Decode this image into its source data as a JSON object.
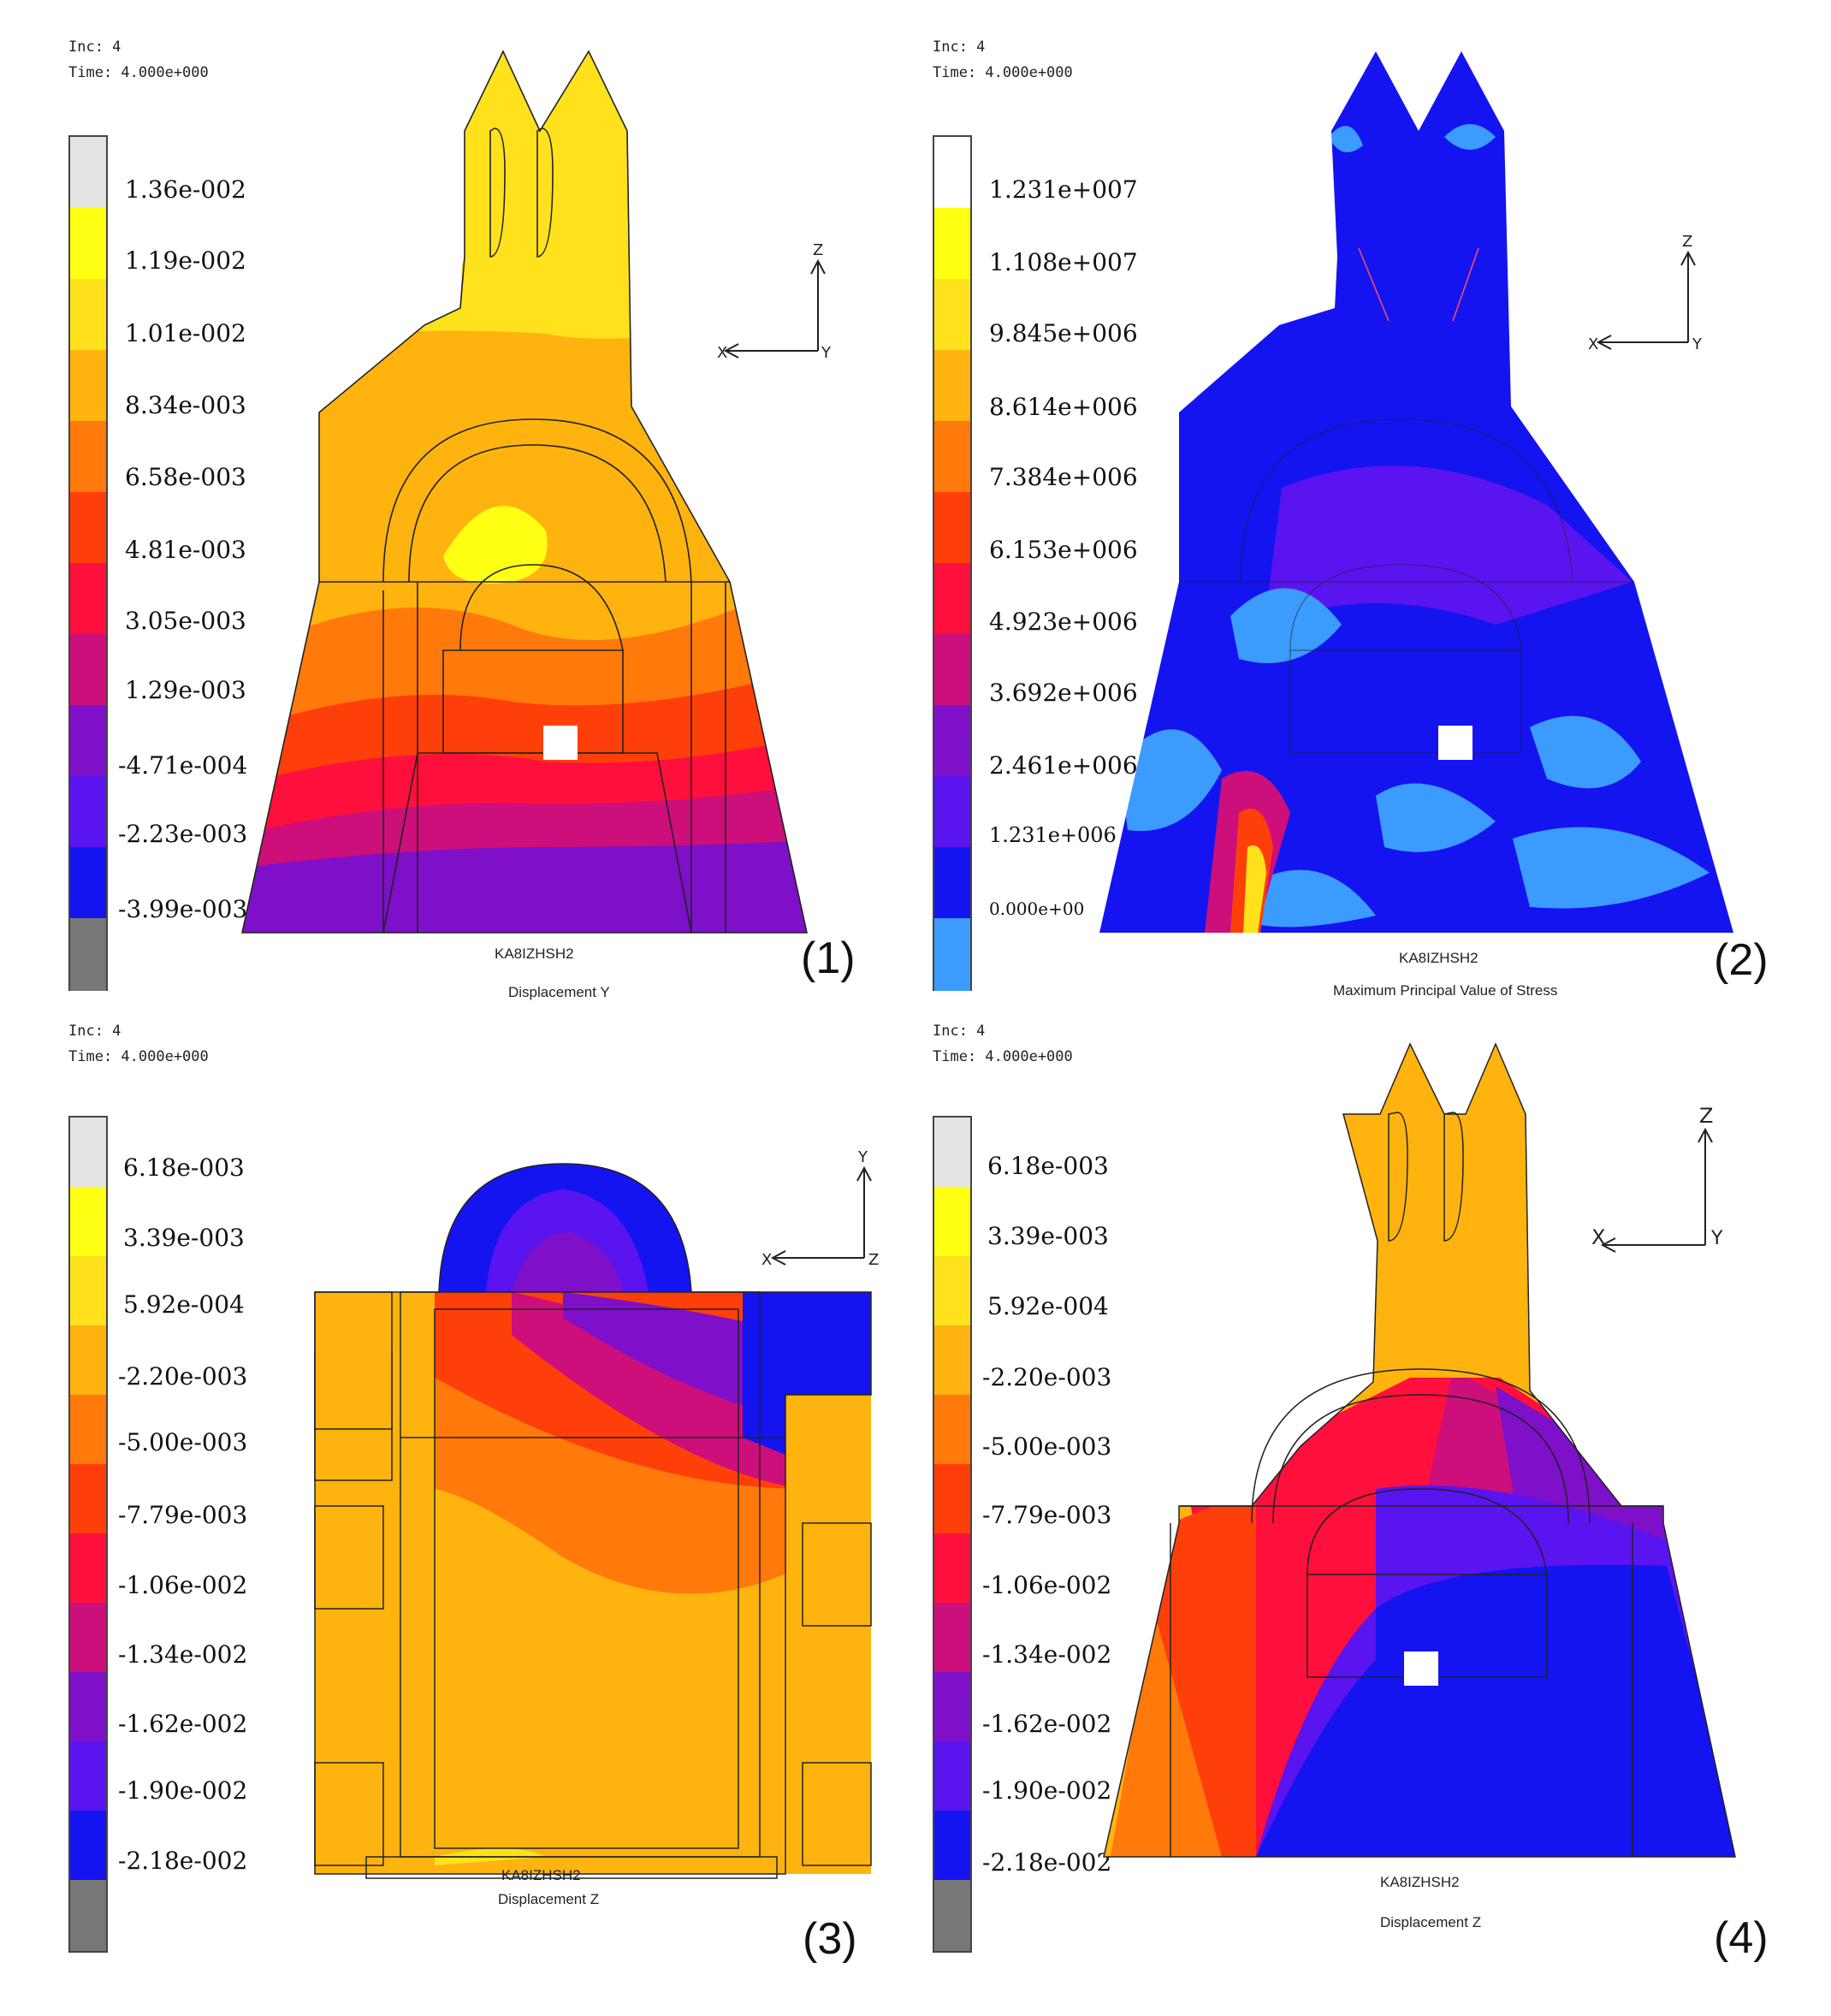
{
  "panels": [
    {
      "id": "1",
      "inc_line": "Inc:  4",
      "time_line": "Time:  4.000e+000",
      "legend": [
        "1.36e-002",
        "1.19e-002",
        "1.01e-002",
        "8.34e-003",
        "6.58e-003",
        "4.81e-003",
        "3.05e-003",
        "1.29e-003",
        "-4.71e-004",
        "-2.23e-003",
        "-3.99e-003"
      ],
      "model_name": "KA8IZHSH2",
      "result": "Displacement Y",
      "number": "(1)",
      "axes": [
        "Z",
        "X",
        "Y"
      ]
    },
    {
      "id": "2",
      "inc_line": "Inc:  4",
      "time_line": "Time:  4.000e+000",
      "legend": [
        "1.231e+007",
        "1.108e+007",
        "9.845e+006",
        "8.614e+006",
        "7.384e+006",
        "6.153e+006",
        "4.923e+006",
        "3.692e+006",
        "2.461e+006",
        "1.231e+006",
        "0.000e+00"
      ],
      "model_name": "KA8IZHSH2",
      "result": "Maximum Principal Value of Stress",
      "number": "(2)",
      "axes": [
        "Z",
        "X",
        "Y"
      ]
    },
    {
      "id": "3",
      "inc_line": "Inc:  4",
      "time_line": "Time:  4.000e+000",
      "legend": [
        "6.18e-003",
        "3.39e-003",
        "5.92e-004",
        "-2.20e-003",
        "-5.00e-003",
        "-7.79e-003",
        "-1.06e-002",
        "-1.34e-002",
        "-1.62e-002",
        "-1.90e-002",
        "-2.18e-002"
      ],
      "model_name": "KA8IZHSH2",
      "result": "Displacement Z",
      "number": "(3)",
      "axes": [
        "Y",
        "X",
        "Z"
      ]
    },
    {
      "id": "4",
      "inc_line": "Inc:  4",
      "time_line": "Time:  4.000e+000",
      "legend": [
        "6.18e-003",
        "3.39e-003",
        "5.92e-004",
        "-2.20e-003",
        "-5.00e-003",
        "-7.79e-003",
        "-1.06e-002",
        "-1.34e-002",
        "-1.62e-002",
        "-1.90e-002",
        "-2.18e-002"
      ],
      "model_name": "KA8IZHSH2",
      "result": "Displacement Z",
      "number": "(4)",
      "axes": [
        "Z",
        "X",
        "Y"
      ]
    }
  ],
  "colors": {
    "scale": [
      "#e4e4e4",
      "#ffff14",
      "#ffe21c",
      "#ffb30f",
      "#ff7a0a",
      "#ff3f0a",
      "#ff0f3c",
      "#cc0f7a",
      "#7d10c8",
      "#5a14f0",
      "#1414f0",
      "#777777"
    ],
    "scale_stress": [
      "#ffffff",
      "#ffff14",
      "#ffe21c",
      "#ffb30f",
      "#ff7a0a",
      "#ff3f0a",
      "#ff0f3c",
      "#cc0f7a",
      "#7d10c8",
      "#5a14f0",
      "#1414f0",
      "#3c9bff"
    ]
  }
}
